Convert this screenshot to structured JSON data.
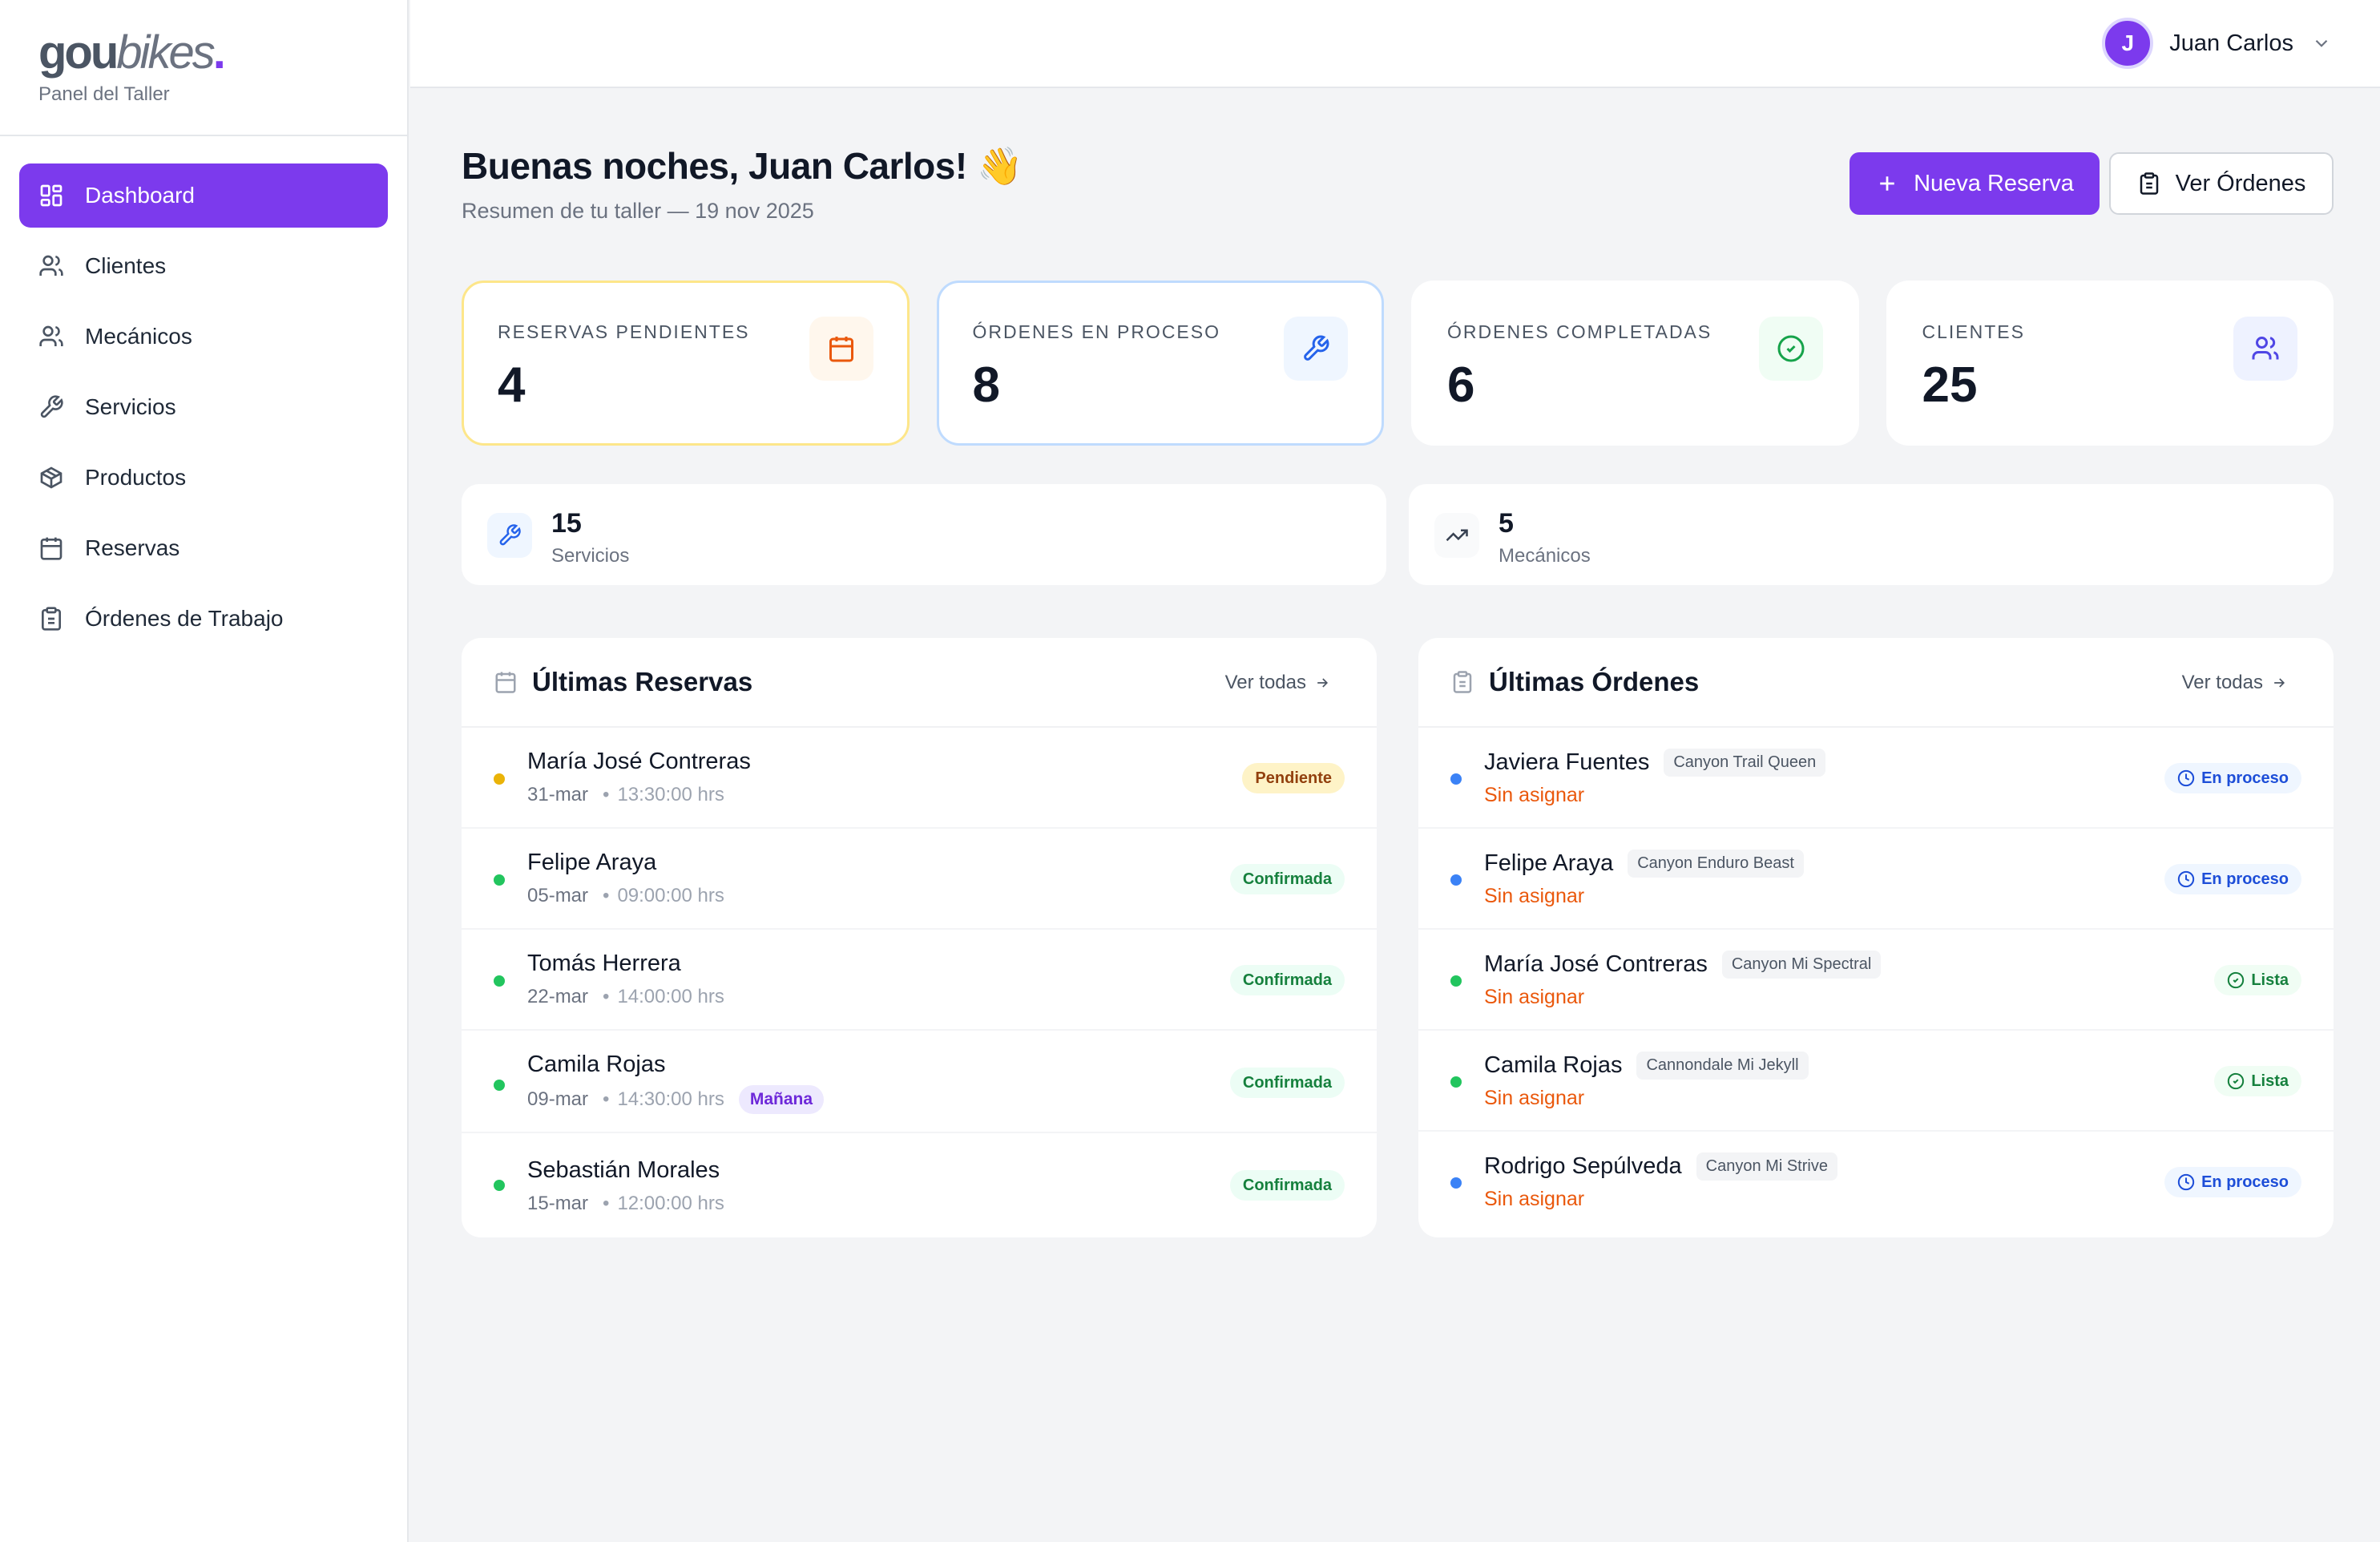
{
  "brand": {
    "logo_bold": "gou",
    "logo_light": "bikes",
    "logo_dot": ".",
    "subtitle": "Panel del Taller"
  },
  "sidebar": {
    "items": [
      {
        "label": "Dashboard",
        "icon": "grid-icon",
        "active": true
      },
      {
        "label": "Clientes",
        "icon": "users-icon"
      },
      {
        "label": "Mecánicos",
        "icon": "users-icon"
      },
      {
        "label": "Servicios",
        "icon": "wrench-icon"
      },
      {
        "label": "Productos",
        "icon": "package-icon"
      },
      {
        "label": "Reservas",
        "icon": "calendar-icon"
      },
      {
        "label": "Órdenes de Trabajo",
        "icon": "clipboard-icon"
      }
    ]
  },
  "header": {
    "user_initial": "J",
    "user_name": "Juan Carlos"
  },
  "main": {
    "greeting": "Buenas noches, Juan Carlos! 👋",
    "subtitle": "Resumen de tu taller — 19 nov 2025",
    "new_booking_label": "Nueva Reserva",
    "view_orders_label": "Ver Órdenes"
  },
  "stats": [
    {
      "label": "RESERVAS PENDIENTES",
      "value": "4",
      "icon": "calendar-icon",
      "color": "#ea580c",
      "bg": "#fff7ed"
    },
    {
      "label": "ÓRDENES EN PROCESO",
      "value": "8",
      "icon": "wrench-icon",
      "color": "#2563eb",
      "bg": "#eff6ff"
    },
    {
      "label": "ÓRDENES COMPLETADAS",
      "value": "6",
      "icon": "check-circle-icon",
      "color": "#16a34a",
      "bg": "#f0fdf4"
    },
    {
      "label": "CLIENTES",
      "value": "25",
      "icon": "users-icon",
      "color": "#4f46e5",
      "bg": "#eef2ff"
    }
  ],
  "mini_stats": [
    {
      "value": "15",
      "label": "Servicios",
      "icon": "wrench-icon"
    },
    {
      "value": "5",
      "label": "Mecánicos",
      "icon": "trending-up-icon"
    }
  ],
  "reservas": {
    "title": "Últimas Reservas",
    "view_all": "Ver todas",
    "items": [
      {
        "name": "María José Contreras",
        "date": "31-mar",
        "sep": "•",
        "time": "13:30:00 hrs",
        "status": "Pendiente",
        "dot": "#eab308"
      },
      {
        "name": "Felipe Araya",
        "date": "05-mar",
        "sep": "•",
        "time": "09:00:00 hrs",
        "status": "Confirmada",
        "dot": "#22c55e"
      },
      {
        "name": "Tomás Herrera",
        "date": "22-mar",
        "sep": "•",
        "time": "14:00:00 hrs",
        "status": "Confirmada",
        "dot": "#22c55e"
      },
      {
        "name": "Camila Rojas",
        "date": "09-mar",
        "sep": "•",
        "time": "14:30:00 hrs",
        "tag": "Mañana",
        "status": "Confirmada",
        "dot": "#22c55e"
      },
      {
        "name": "Sebastián Morales",
        "date": "15-mar",
        "sep": "•",
        "time": "12:00:00 hrs",
        "status": "Confirmada",
        "dot": "#22c55e"
      }
    ]
  },
  "ordenes": {
    "title": "Últimas Órdenes",
    "view_all": "Ver todas",
    "items": [
      {
        "name": "Javiera Fuentes",
        "bike": "Canyon Trail Queen",
        "assignee": "Sin asignar",
        "status": "En proceso",
        "dot": "#3b82f6"
      },
      {
        "name": "Felipe Araya",
        "bike": "Canyon Enduro Beast",
        "assignee": "Sin asignar",
        "status": "En proceso",
        "dot": "#3b82f6"
      },
      {
        "name": "María José Contreras",
        "bike": "Canyon Mi Spectral",
        "assignee": "Sin asignar",
        "status": "Lista",
        "dot": "#22c55e"
      },
      {
        "name": "Camila Rojas",
        "bike": "Cannondale Mi Jekyll",
        "assignee": "Sin asignar",
        "status": "Lista",
        "dot": "#22c55e"
      },
      {
        "name": "Rodrigo Sepúlveda",
        "bike": "Canyon Mi Strive",
        "assignee": "Sin asignar",
        "status": "En proceso",
        "dot": "#3b82f6"
      }
    ]
  }
}
